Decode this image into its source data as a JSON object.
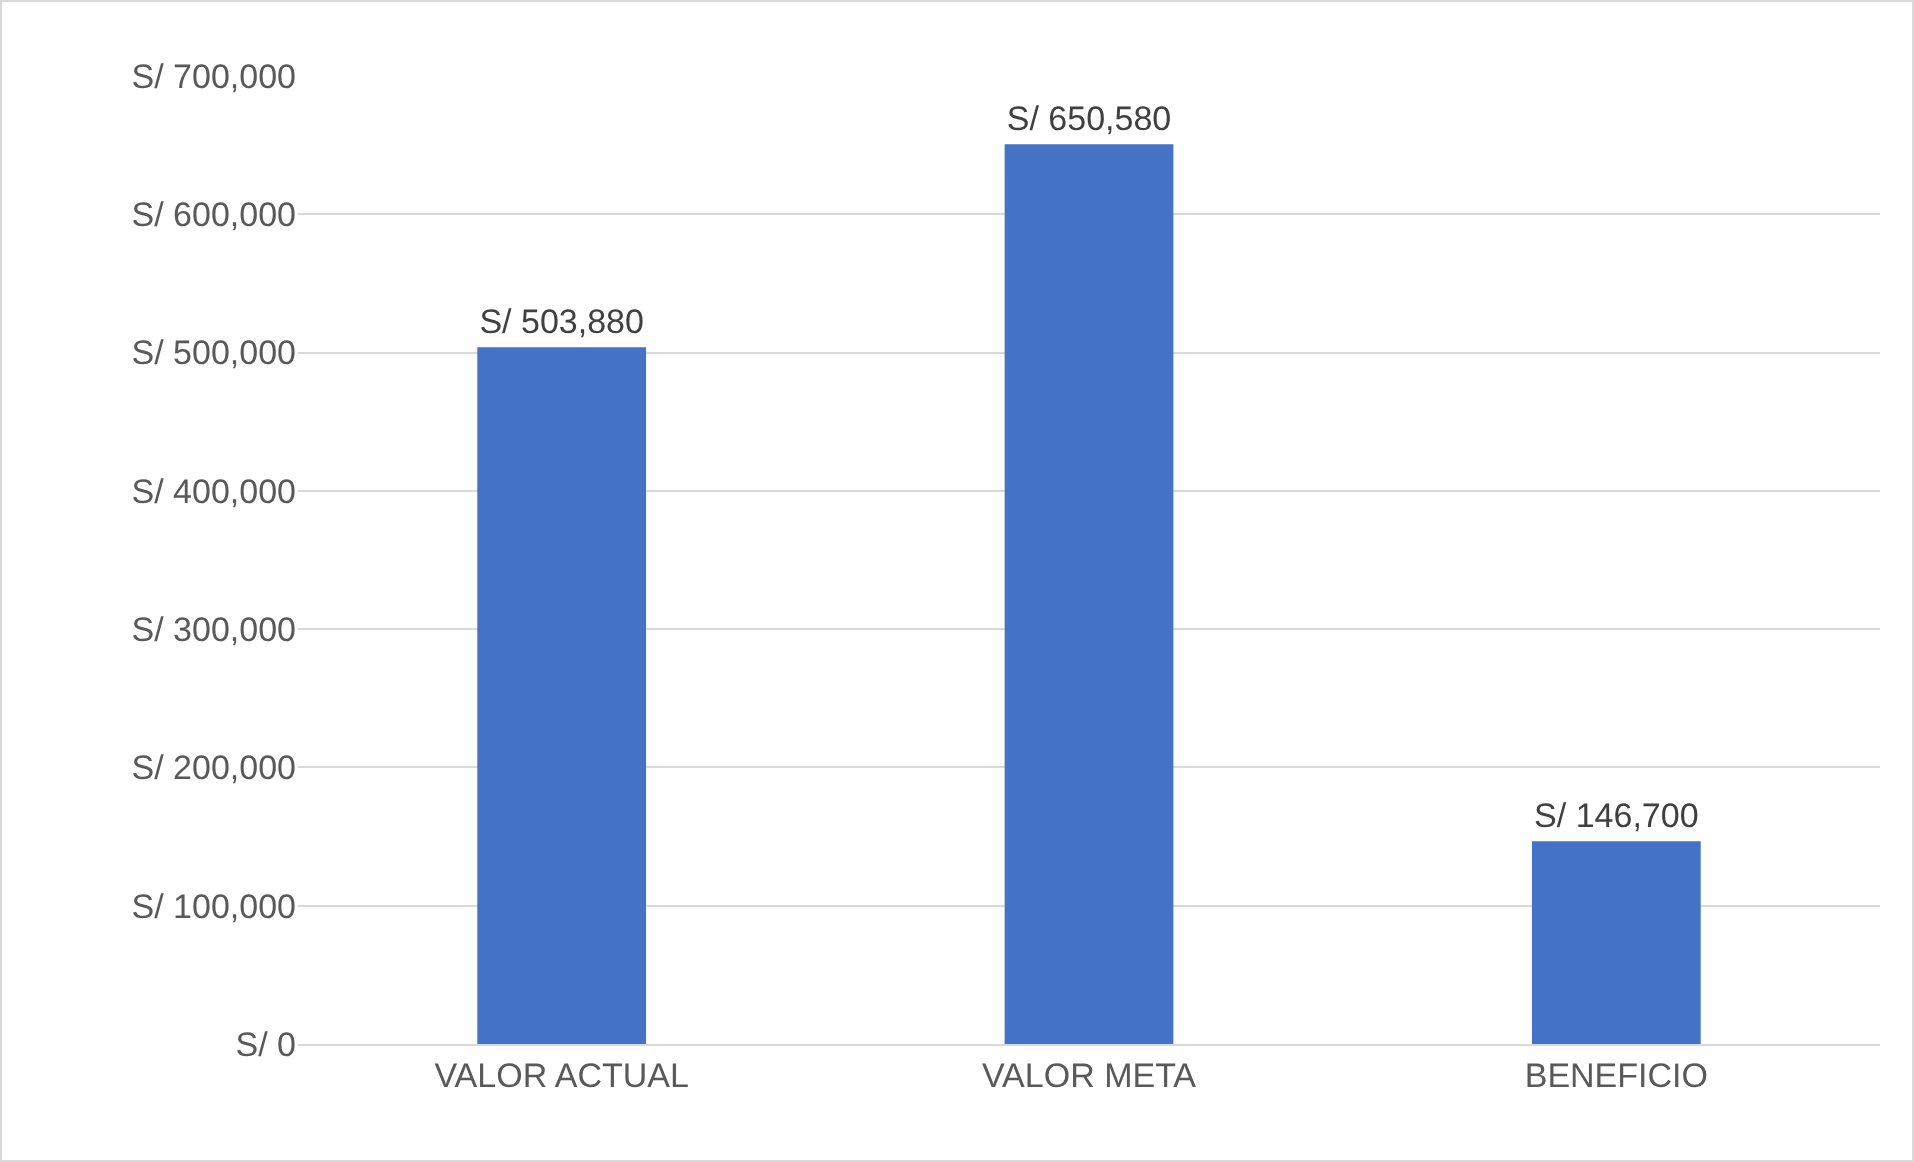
{
  "chart_data": {
    "type": "bar",
    "categories": [
      "VALOR ACTUAL",
      "VALOR META",
      "BENEFICIO"
    ],
    "values": [
      503880,
      650580,
      146700
    ],
    "value_labels": [
      "S/ 503,880",
      "S/ 650,580",
      "S/ 146,700"
    ],
    "color": "#4472c4",
    "ylim": [
      0,
      700000
    ],
    "yticks": [
      {
        "value": 0,
        "label": "S/ 0"
      },
      {
        "value": 100000,
        "label": "S/ 100,000"
      },
      {
        "value": 200000,
        "label": "S/ 200,000"
      },
      {
        "value": 300000,
        "label": "S/ 300,000"
      },
      {
        "value": 400000,
        "label": "S/ 400,000"
      },
      {
        "value": 500000,
        "label": "S/ 500,000"
      },
      {
        "value": 600000,
        "label": "S/ 600,000"
      },
      {
        "value": 700000,
        "label": "S/ 700,000"
      }
    ],
    "grid": "y",
    "legend": false
  }
}
